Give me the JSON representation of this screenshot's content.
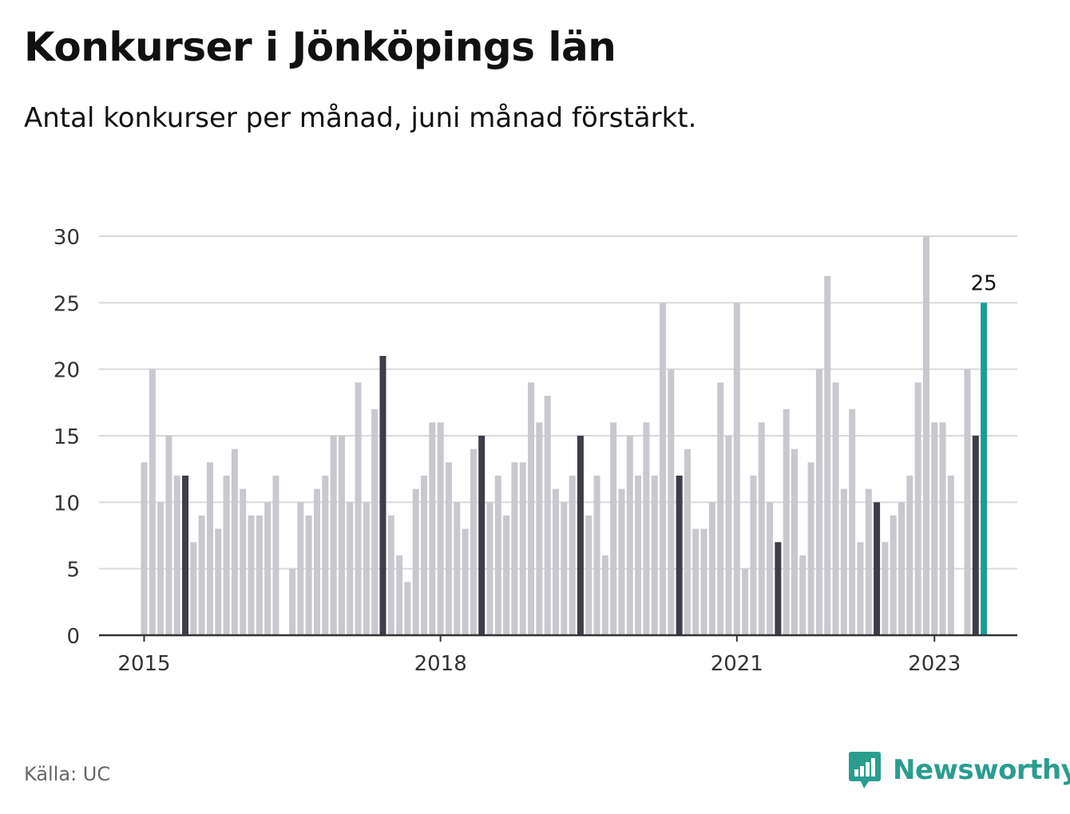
{
  "title": "Konkurser i Jönköpings län",
  "subtitle": "Antal konkurser per månad, juni månad förstärkt.",
  "source": "Källa: UC",
  "brand": "Newsworthy",
  "colors": {
    "bar_default": "#c8c8ce",
    "bar_june": "#3e3e4a",
    "bar_latest": "#1a9e96",
    "grid": "#d9d9d9",
    "axis": "#333333",
    "brand": "#2a9d8f"
  },
  "chart_data": {
    "type": "bar",
    "title": "Konkurser i Jönköpings län",
    "subtitle": "Antal konkurser per månad, juni månad förstärkt.",
    "start": "2015-01",
    "x_tick_labels": [
      "2015",
      "2018",
      "2021",
      "2023"
    ],
    "y_ticks": [
      0,
      5,
      10,
      15,
      20,
      25,
      30
    ],
    "ylim": [
      0,
      30
    ],
    "grid": true,
    "highlight": "june",
    "latest_label": "25",
    "values": [
      13,
      20,
      10,
      15,
      12,
      12,
      7,
      9,
      13,
      8,
      12,
      14,
      11,
      9,
      9,
      10,
      12,
      0,
      5,
      10,
      9,
      11,
      12,
      15,
      15,
      10,
      19,
      10,
      17,
      21,
      9,
      6,
      4,
      11,
      12,
      16,
      16,
      13,
      10,
      8,
      14,
      15,
      10,
      12,
      9,
      13,
      13,
      19,
      16,
      18,
      11,
      10,
      12,
      15,
      9,
      12,
      6,
      16,
      11,
      15,
      12,
      16,
      12,
      25,
      20,
      12,
      14,
      8,
      8,
      10,
      19,
      15,
      25,
      5,
      12,
      16,
      10,
      7,
      17,
      14,
      6,
      13,
      20,
      27,
      19,
      11,
      17,
      7,
      11,
      10,
      7,
      9,
      10,
      12,
      19,
      30,
      16,
      16,
      12,
      0,
      20,
      15,
      25
    ]
  }
}
